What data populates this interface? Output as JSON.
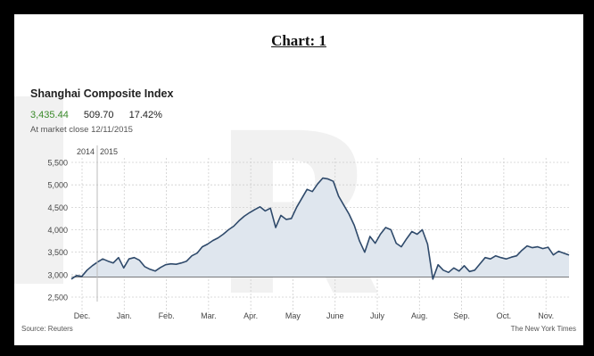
{
  "header": {
    "chart_label": "Chart: 1"
  },
  "index": {
    "name": "Shanghai Composite Index",
    "price": "3,435.44",
    "change": "509.70",
    "change_pct": "17.42%",
    "close_label": "At market close 12/11/2015"
  },
  "footer": {
    "source": "Source: Reuters",
    "credit": "The New York Times"
  },
  "colors": {
    "line": "#2f4a6b",
    "fill": "#dfe6ee",
    "price": "#3a8a2a",
    "grid": "#cfcfcf"
  },
  "chart_data": {
    "type": "area",
    "year_labels": [
      "2014",
      "2015"
    ],
    "x_tick_labels": [
      "Dec.",
      "Jan.",
      "Feb.",
      "Mar.",
      "Apr.",
      "May",
      "June",
      "July",
      "Aug.",
      "Sep.",
      "Oct.",
      "Nov."
    ],
    "y_tick_labels": [
      "2,500",
      "3,000",
      "3,500",
      "4,000",
      "4,500",
      "5,000",
      "5,500"
    ],
    "y_ticks": [
      2500,
      3000,
      3500,
      4000,
      4500,
      5000,
      5500
    ],
    "ylim": [
      2400,
      5600
    ],
    "baseline": 2950,
    "grid": true,
    "series": [
      {
        "values": [
          2900,
          2980,
          2960,
          3100,
          3200,
          3280,
          3350,
          3300,
          3260,
          3380,
          3150,
          3350,
          3380,
          3320,
          3180,
          3120,
          3080,
          3160,
          3220,
          3240,
          3230,
          3260,
          3300,
          3420,
          3480,
          3620,
          3680,
          3760,
          3820,
          3900,
          4000,
          4080,
          4200,
          4300,
          4380,
          4450,
          4510,
          4420,
          4480,
          4050,
          4320,
          4230,
          4250,
          4500,
          4700,
          4900,
          4850,
          5020,
          5150,
          5130,
          5080,
          4750,
          4550,
          4350,
          4100,
          3750,
          3500,
          3850,
          3700,
          3900,
          4050,
          4000,
          3700,
          3620,
          3800,
          3960,
          3900,
          4000,
          3680,
          2900,
          3220,
          3100,
          3050,
          3150,
          3080,
          3200,
          3070,
          3100,
          3240,
          3380,
          3350,
          3420,
          3380,
          3350,
          3390,
          3420,
          3540,
          3640,
          3600,
          3620,
          3580,
          3610,
          3440,
          3520,
          3480,
          3435
        ]
      }
    ]
  }
}
